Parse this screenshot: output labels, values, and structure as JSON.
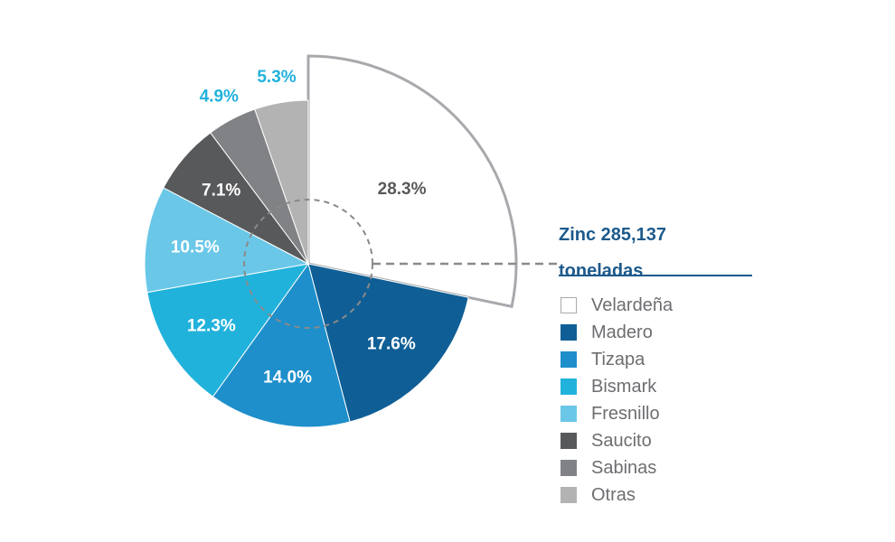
{
  "chart_data": {
    "type": "pie",
    "title_line1": "Zinc 285,137",
    "title_line2": "toneladas",
    "slices": [
      {
        "name": "Velardeña",
        "value": 28.3,
        "label": "28.3%",
        "color": "#ffffff",
        "label_color": "#58595b",
        "exploded": true
      },
      {
        "name": "Madero",
        "value": 17.6,
        "label": "17.6%",
        "color": "#0f5f96",
        "label_color": "#ffffff"
      },
      {
        "name": "Tizapa",
        "value": 14.0,
        "label": "14.0%",
        "color": "#1e8fcb",
        "label_color": "#ffffff"
      },
      {
        "name": "Bismark",
        "value": 12.3,
        "label": "12.3%",
        "color": "#21b2dc",
        "label_color": "#ffffff"
      },
      {
        "name": "Fresnillo",
        "value": 10.5,
        "label": "10.5%",
        "color": "#6ac7e8",
        "label_color": "#ffffff"
      },
      {
        "name": "Saucito",
        "value": 7.1,
        "label": "7.1%",
        "color": "#58595b",
        "label_color": "#ffffff"
      },
      {
        "name": "Sabinas",
        "value": 4.9,
        "label": "4.9%",
        "color": "#808285",
        "label_color": "#21b2dc",
        "outside": true
      },
      {
        "name": "Otras",
        "value": 5.3,
        "label": "5.3%",
        "color": "#b3b3b3",
        "label_color": "#21b2dc",
        "outside": true
      }
    ],
    "legend_placement": "right",
    "accent_color": "#1d5a8c",
    "outline_color": "#a7a9ac"
  }
}
